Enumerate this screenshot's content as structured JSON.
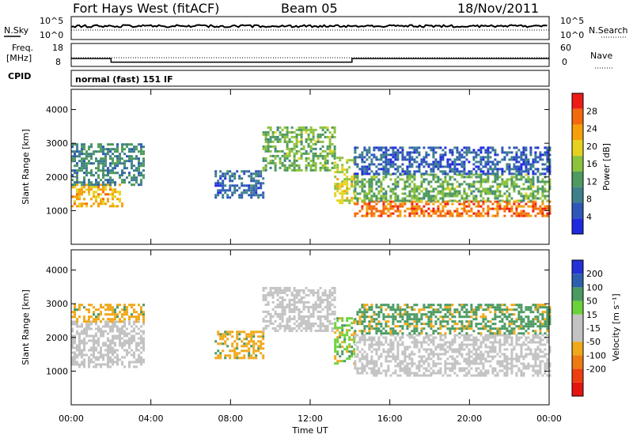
{
  "header": {
    "station": "Fort Hays West (fitACF)",
    "beam": "Beam 05",
    "date": "18/Nov/2011"
  },
  "strips": {
    "nsky_label": "N.Sky",
    "nsky_ticks": [
      "10^5",
      "10^0"
    ],
    "nsearch_label": "N.Search",
    "nsearch_ticks": [
      "10^5",
      "10^0"
    ],
    "freq_label": "Freq.",
    "freq_unit": "[MHz]",
    "freq_ticks": [
      "18",
      "8"
    ],
    "nave_label": "Nave",
    "nave_ticks": [
      "60",
      "0"
    ],
    "cpid_label": "CPID",
    "cpid_value": "normal (fast) 151 IF"
  },
  "colors": {
    "power_scale": [
      "#1f2ae0",
      "#2d58b8",
      "#3e7f8c",
      "#4f9a5e",
      "#8cc23c",
      "#e6d21e",
      "#f5a00a",
      "#f26a0c",
      "#ee1c14"
    ],
    "velocity_scale": [
      "#2430d8",
      "#2e5fae",
      "#4a9a62",
      "#6ad23a",
      "#c3c3c3",
      "#c3c3c3",
      "#f0a81a",
      "#ee7a12",
      "#ee3f10",
      "#e6140f"
    ],
    "ground_scatter": "#c3c3c3"
  },
  "chart_data": [
    {
      "type": "heatmap",
      "panel": "power",
      "ylabel": "Slant Range [km]",
      "yticks": [
        1000,
        2000,
        3000,
        4000
      ],
      "ylim": [
        0,
        4600
      ],
      "xticks": [
        "00:00",
        "04:00",
        "08:00",
        "12:00",
        "16:00",
        "20:00",
        "00:00"
      ],
      "xlim_hours": [
        0,
        24
      ],
      "colorbar": {
        "label": "Power [dB]",
        "ticks": [
          4,
          8,
          12,
          16,
          20,
          24,
          28
        ],
        "range": [
          0,
          32
        ]
      },
      "regions": [
        {
          "t": [
            0,
            2.6
          ],
          "r": [
            1100,
            1800
          ],
          "value": 22
        },
        {
          "t": [
            0,
            3.6
          ],
          "r": [
            1800,
            3000
          ],
          "value": 10
        },
        {
          "t": [
            7.2,
            9.6
          ],
          "r": [
            1400,
            2200
          ],
          "value": 7
        },
        {
          "t": [
            9.6,
            13.2
          ],
          "r": [
            2200,
            3500
          ],
          "value": 14
        },
        {
          "t": [
            13.2,
            14.2
          ],
          "r": [
            1200,
            2600
          ],
          "value": 18
        },
        {
          "t": [
            14.2,
            24
          ],
          "r": [
            850,
            1300
          ],
          "value": 26
        },
        {
          "t": [
            14.2,
            24
          ],
          "r": [
            1300,
            2100
          ],
          "value": 14
        },
        {
          "t": [
            14.2,
            24
          ],
          "r": [
            2100,
            2900
          ],
          "value": 6
        }
      ]
    },
    {
      "type": "heatmap",
      "panel": "velocity",
      "ylabel": "Slant Range [km]",
      "yticks": [
        1000,
        2000,
        3000,
        4000
      ],
      "ylim": [
        0,
        4600
      ],
      "xticks": [
        "00:00",
        "04:00",
        "08:00",
        "12:00",
        "16:00",
        "20:00",
        "00:00"
      ],
      "xlabel": "Time UT",
      "xlim_hours": [
        0,
        24
      ],
      "colorbar": {
        "label": "Velocity [m s⁻¹]",
        "ticks": [
          "200",
          "100",
          "50",
          "15",
          "-15",
          "-50",
          "-100",
          "-200"
        ]
      },
      "regions": [
        {
          "t": [
            0,
            3.6
          ],
          "r": [
            1100,
            2500
          ],
          "value": "ground"
        },
        {
          "t": [
            0,
            3.6
          ],
          "r": [
            2500,
            3000
          ],
          "value": -50
        },
        {
          "t": [
            7.2,
            9.6
          ],
          "r": [
            1400,
            2200
          ],
          "value": -50
        },
        {
          "t": [
            9.6,
            13.2
          ],
          "r": [
            2200,
            3500
          ],
          "value": "ground"
        },
        {
          "t": [
            13.2,
            14.2
          ],
          "r": [
            1200,
            2600
          ],
          "value": 50
        },
        {
          "t": [
            14.2,
            24
          ],
          "r": [
            850,
            2100
          ],
          "value": "ground"
        },
        {
          "t": [
            14.2,
            24
          ],
          "r": [
            2100,
            3000
          ],
          "value": 100
        }
      ]
    }
  ]
}
